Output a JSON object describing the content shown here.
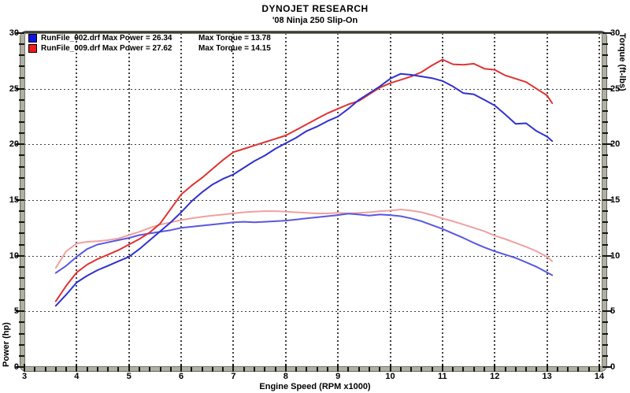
{
  "header": {
    "title": "DYNOJET RESEARCH",
    "subtitle": "'08 Ninja 250 Slip-On"
  },
  "legend": [
    {
      "file": "RunFile_002.drf",
      "power_label": "Max Power = 26.34",
      "torque_label": "Max Torque = 13.78",
      "color": "#1414e0"
    },
    {
      "file": "RunFile_009.drf",
      "power_label": "Max Power = 27.62",
      "torque_label": "Max Torque = 14.15",
      "color": "#ee1c1c"
    }
  ],
  "colors": {
    "background": "#ffffff",
    "grid": "#3f3f3f",
    "frame": "#b0b0a2",
    "tick": "#141414",
    "power_blue": "#3030d0",
    "power_red": "#e03232",
    "torque_blue": "#5858e0",
    "torque_pink": "#f0a0a0"
  },
  "chart_data": {
    "type": "line",
    "title": "DYNOJET RESEARCH",
    "subtitle": "'08 Ninja 250 Slip-On",
    "xlabel": "Engine Speed (RPM x1000)",
    "ylabel_left": "Power (hp)",
    "ylabel_right": "Torque (ft-lbs)",
    "xlim": [
      3,
      14.1
    ],
    "ylim_left": [
      0,
      30
    ],
    "ylim_right": [
      0,
      30
    ],
    "x_major_ticks": [
      3,
      4,
      5,
      6,
      7,
      8,
      9,
      10,
      11,
      12,
      13,
      14
    ],
    "x_minor_step": 0.2,
    "y_major_ticks": [
      0,
      5,
      10,
      15,
      20,
      25,
      30
    ],
    "y_minor_step": 1,
    "grid_x": [
      4,
      5,
      6,
      7,
      8,
      9,
      10,
      11,
      12,
      13,
      14
    ],
    "grid_y": [
      5,
      10,
      15,
      20,
      25
    ],
    "grid_style": "dotted",
    "legend_position": "top-left",
    "x": [
      3.6,
      3.8,
      4.0,
      4.2,
      4.4,
      4.6,
      4.8,
      5.0,
      5.2,
      5.4,
      5.6,
      5.8,
      6.0,
      6.2,
      6.4,
      6.6,
      6.8,
      7.0,
      7.2,
      7.4,
      7.6,
      7.8,
      8.0,
      8.2,
      8.4,
      8.6,
      8.8,
      9.0,
      9.2,
      9.4,
      9.6,
      9.8,
      10.0,
      10.2,
      10.4,
      10.6,
      10.8,
      11.0,
      11.2,
      11.4,
      11.6,
      11.8,
      12.0,
      12.2,
      12.4,
      12.6,
      12.8,
      13.0,
      13.1
    ],
    "series": [
      {
        "name": "RunFile_009.drf Torque (ft-lbs)",
        "axis": "right",
        "color": "#f0a0a0",
        "max": 14.15,
        "values": [
          8.9,
          10.4,
          11.1,
          11.25,
          11.3,
          11.4,
          11.55,
          11.85,
          12.15,
          12.5,
          12.8,
          13.0,
          13.2,
          13.35,
          13.5,
          13.6,
          13.7,
          13.8,
          13.9,
          13.95,
          14.0,
          14.0,
          13.95,
          13.9,
          13.85,
          13.8,
          13.8,
          13.85,
          13.8,
          13.85,
          13.9,
          14.0,
          14.05,
          14.15,
          14.05,
          13.9,
          13.65,
          13.35,
          13.1,
          12.8,
          12.5,
          12.2,
          11.8,
          11.5,
          11.15,
          10.8,
          10.4,
          9.9,
          9.5
        ]
      },
      {
        "name": "RunFile_002.drf Torque (ft-lbs)",
        "axis": "right",
        "color": "#5858e0",
        "max": 13.78,
        "values": [
          8.45,
          9.1,
          9.9,
          10.6,
          11.0,
          11.2,
          11.4,
          11.6,
          11.85,
          12.0,
          12.15,
          12.3,
          12.5,
          12.6,
          12.7,
          12.8,
          12.9,
          13.0,
          13.05,
          13.0,
          13.05,
          13.1,
          13.15,
          13.25,
          13.35,
          13.45,
          13.55,
          13.65,
          13.78,
          13.7,
          13.6,
          13.7,
          13.65,
          13.55,
          13.35,
          13.1,
          12.75,
          12.4,
          12.0,
          11.6,
          11.15,
          10.75,
          10.4,
          10.1,
          9.8,
          9.4,
          9.0,
          8.5,
          8.25
        ]
      },
      {
        "name": "RunFile_009.drf Power (hp)",
        "axis": "left",
        "color": "#e03232",
        "max": 27.62,
        "values": [
          5.9,
          7.3,
          8.5,
          9.2,
          9.7,
          10.1,
          10.5,
          11.0,
          11.5,
          12.1,
          12.9,
          14.2,
          15.5,
          16.3,
          17.0,
          17.8,
          18.6,
          19.3,
          19.6,
          19.9,
          20.2,
          20.5,
          20.8,
          21.3,
          21.8,
          22.3,
          22.8,
          23.2,
          23.6,
          23.9,
          24.5,
          25.1,
          25.5,
          25.8,
          26.1,
          26.5,
          27.1,
          27.62,
          27.2,
          27.15,
          27.25,
          26.8,
          26.7,
          26.2,
          25.9,
          25.6,
          25.0,
          24.4,
          23.7
        ]
      },
      {
        "name": "RunFile_002.drf Power (hp)",
        "axis": "left",
        "color": "#3030d0",
        "max": 26.34,
        "values": [
          5.5,
          6.5,
          7.6,
          8.2,
          8.7,
          9.1,
          9.5,
          9.9,
          10.6,
          11.4,
          12.2,
          13.0,
          13.9,
          14.9,
          15.7,
          16.4,
          16.9,
          17.3,
          17.9,
          18.5,
          19.0,
          19.6,
          20.1,
          20.6,
          21.2,
          21.6,
          22.1,
          22.5,
          23.2,
          24.0,
          24.6,
          25.2,
          25.9,
          26.34,
          26.25,
          26.1,
          25.95,
          25.7,
          25.2,
          24.6,
          24.5,
          24.0,
          23.5,
          22.7,
          21.85,
          21.9,
          21.2,
          20.7,
          20.3
        ]
      }
    ]
  }
}
